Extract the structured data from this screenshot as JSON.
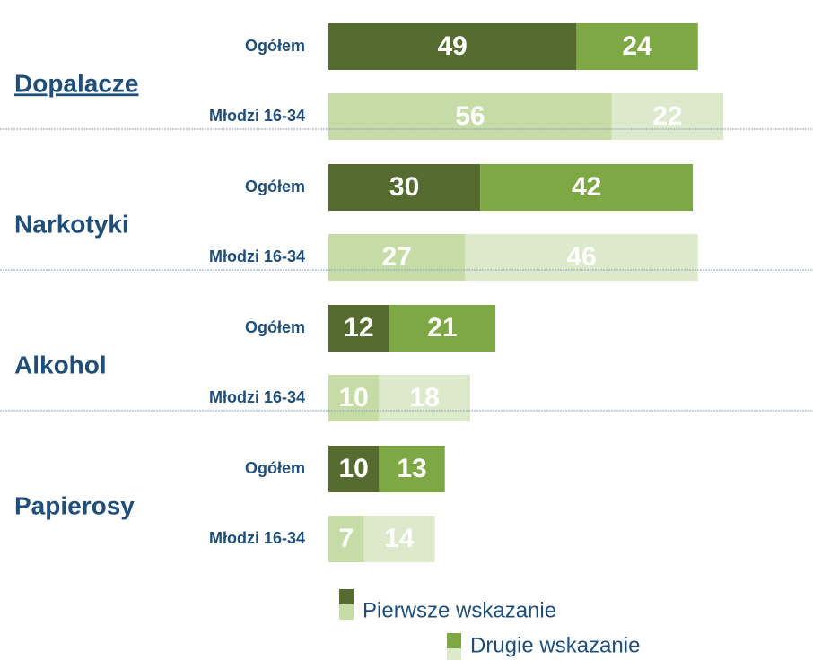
{
  "chart_data": {
    "type": "bar",
    "orientation": "horizontal",
    "stacked": true,
    "groups": [
      "Dopalacze",
      "Narkotyki",
      "Alkohol",
      "Papierosy"
    ],
    "subgroups": [
      "Ogółem",
      "Młodzi 16-34"
    ],
    "series": [
      {
        "name": "Pierwsze wskazanie",
        "colors": [
          "#556b2f",
          "#c5dca6"
        ],
        "values": [
          [
            49,
            56
          ],
          [
            30,
            27
          ],
          [
            12,
            10
          ],
          [
            10,
            7
          ]
        ]
      },
      {
        "name": "Drugie wskazanie",
        "colors": [
          "#7ea843",
          "#dce9cb"
        ],
        "values": [
          [
            24,
            22
          ],
          [
            42,
            46
          ],
          [
            21,
            18
          ],
          [
            13,
            14
          ]
        ]
      }
    ]
  }
}
